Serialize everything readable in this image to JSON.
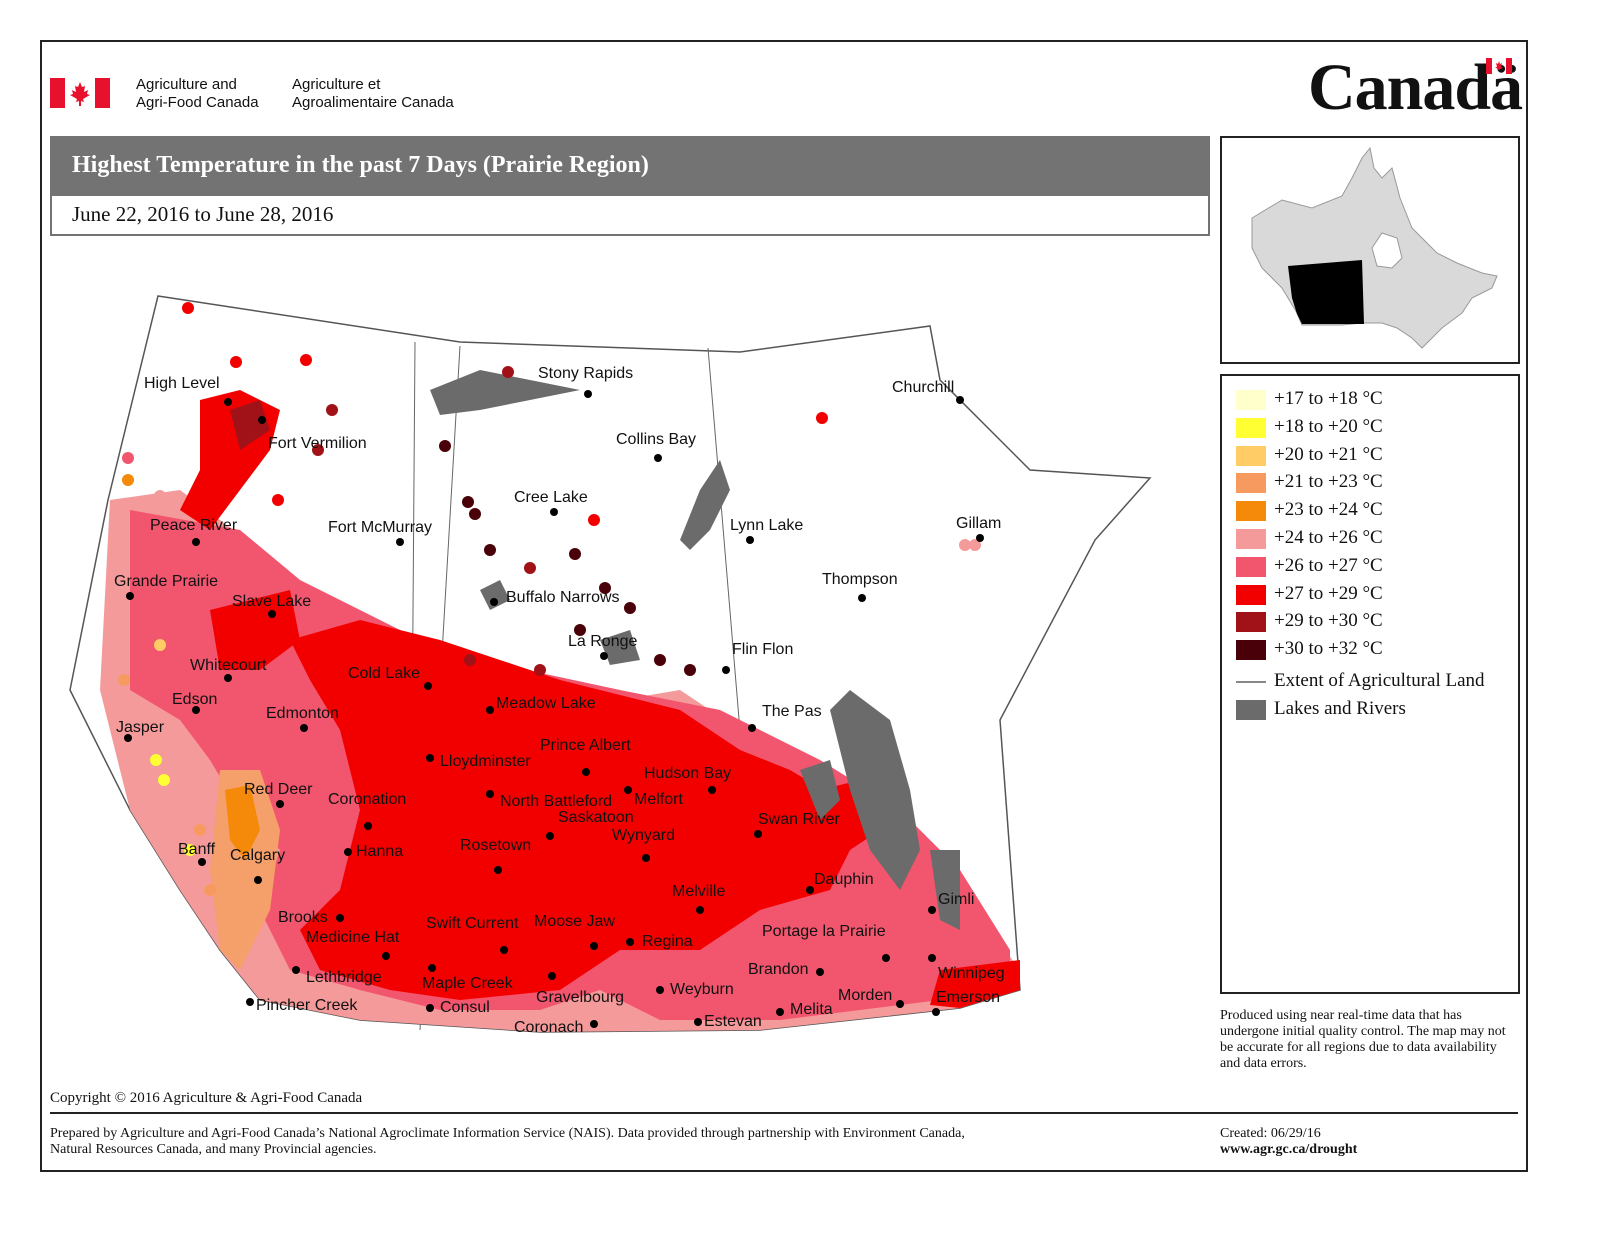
{
  "header": {
    "dept_en_line1": "Agriculture and",
    "dept_en_line2": "Agri-Food Canada",
    "dept_fr_line1": "Agriculture et",
    "dept_fr_line2": "Agroalimentaire Canada",
    "wordmark": "Canadä"
  },
  "title": "Highest Temperature in the past 7 Days (Prairie Region)",
  "date_range": "June 22, 2016 to June 28, 2016",
  "legend": {
    "items": [
      {
        "label": "+17 to +18 °C",
        "color": "#FFFFCC"
      },
      {
        "label": "+18 to +20 °C",
        "color": "#FFFF33"
      },
      {
        "label": "+20 to +21 °C",
        "color": "#FFCC66"
      },
      {
        "label": "+21 to +23 °C",
        "color": "#F79A60"
      },
      {
        "label": "+23 to +24 °C",
        "color": "#F58A0A"
      },
      {
        "label": "+24 to +26 °C",
        "color": "#F59A9A"
      },
      {
        "label": "+26 to +27 °C",
        "color": "#F2556E"
      },
      {
        "label": "+27 to +29 °C",
        "color": "#F20000"
      },
      {
        "label": "+29 to +30 °C",
        "color": "#A01218"
      },
      {
        "label": "+30 to +32 °C",
        "color": "#4A0008"
      }
    ],
    "ag_land_label": "Extent of Agricultural Land",
    "lakes_label": "Lakes and Rivers",
    "ag_land_color": "#888888",
    "lakes_color": "#6B6B6B"
  },
  "note": "Produced using near real-time data that has undergone initial quality control. The map may not be accurate for all regions due to data availability and data errors.",
  "copyright": "Copyright © 2016 Agriculture & Agri-Food Canada",
  "prepared_by": "Prepared by Agriculture and Agri-Food Canada’s National Agroclimate Information Service (NAIS). Data provided through partnership with Environment Canada, Natural Resources Canada, and many Provincial agencies.",
  "created": "Created: 06/29/16",
  "website": "www.agr.gc.ca/drought",
  "cities": [
    "High Level",
    "Fort Vermilion",
    "Peace River",
    "Grande Prairie",
    "Slave Lake",
    "Fort McMurray",
    "Whitecourt",
    "Edson",
    "Jasper",
    "Edmonton",
    "Cold Lake",
    "Red Deer",
    "Coronation",
    "Banff",
    "Calgary",
    "Hanna",
    "Brooks",
    "Medicine Hat",
    "Lethbridge",
    "Pincher Creek",
    "Stony Rapids",
    "Collins Bay",
    "Cree Lake",
    "Buffalo Narrows",
    "La Ronge",
    "Meadow Lake",
    "Lloydminster",
    "Prince Albert",
    "North Battleford",
    "Melfort",
    "Hudson Bay",
    "Saskatoon",
    "Wynyard",
    "Rosetown",
    "Swift Current",
    "Moose Jaw",
    "Regina",
    "Maple Creek",
    "Consul",
    "Gravelbourg",
    "Coronach",
    "Weyburn",
    "Estevan",
    "Melville",
    "Churchill",
    "Lynn Lake",
    "Gillam",
    "Thompson",
    "Flin Flon",
    "The Pas",
    "Swan River",
    "Dauphin",
    "Gimli",
    "Portage la Prairie",
    "Winnipeg",
    "Brandon",
    "Morden",
    "Melita",
    "Emerson"
  ]
}
